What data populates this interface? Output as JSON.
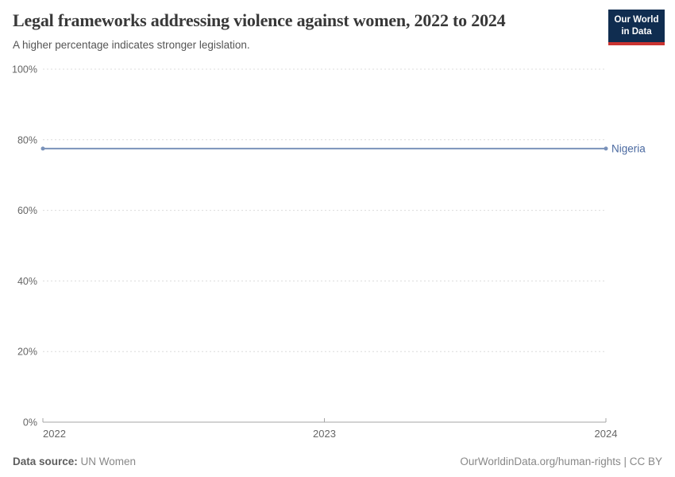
{
  "header": {
    "title": "Legal frameworks addressing violence against women, 2022 to 2024",
    "subtitle": "A higher percentage indicates stronger legislation.",
    "logo": {
      "line1": "Our World",
      "line2": "in Data"
    }
  },
  "chart_data": {
    "type": "line",
    "title": "Legal frameworks addressing violence against women, 2022 to 2024",
    "subtitle": "A higher percentage indicates stronger legislation.",
    "x": [
      2022,
      2023,
      2024
    ],
    "xticks": [
      "2022",
      "2023",
      "2024"
    ],
    "series": [
      {
        "name": "Nigeria",
        "values": [
          77.5,
          77.5,
          77.5
        ],
        "color": "#7a92ba",
        "label_color": "#4a69a0"
      }
    ],
    "xlabel": "",
    "ylabel": "",
    "ylim": [
      0,
      100
    ],
    "yticks": [
      0,
      20,
      40,
      60,
      80,
      100
    ],
    "ytick_suffix": "%",
    "grid": "horizontal-dashed",
    "legend_position": "line-end-label"
  },
  "colors": {
    "series_line": "#7a92ba",
    "series_label": "#4a69a0",
    "gridline": "#dcdcdc",
    "axis": "#a5a5a5",
    "brand_navy": "#102d50",
    "brand_red": "#cb3431"
  },
  "footer": {
    "source_label": "Data source:",
    "source_value": "UN Women",
    "link": "OurWorldinData.org/human-rights",
    "separator": " | ",
    "license": "CC BY"
  }
}
